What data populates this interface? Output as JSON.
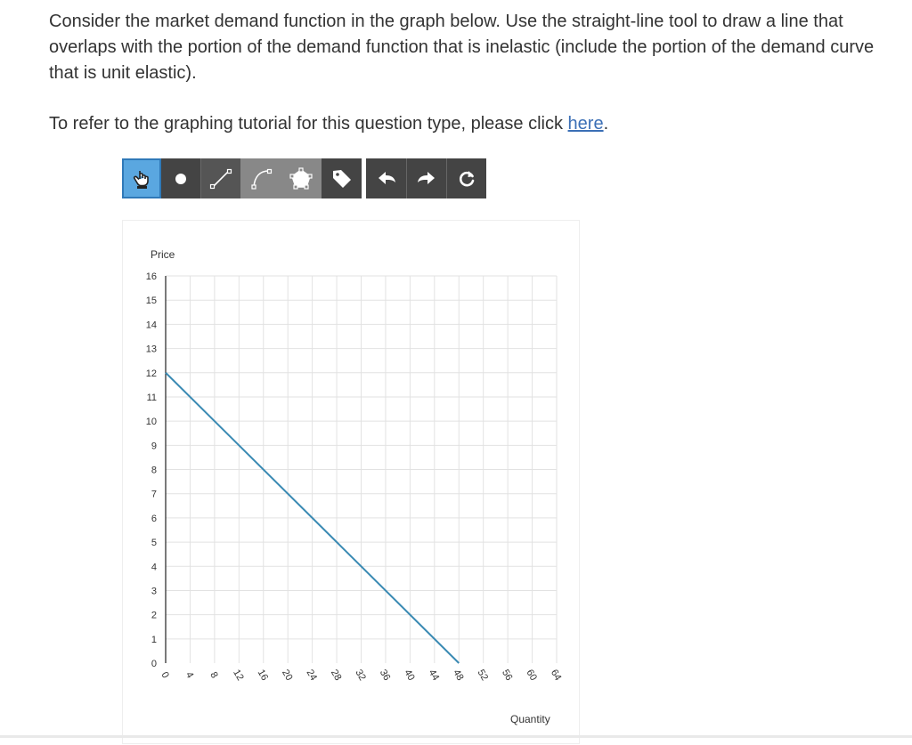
{
  "question": {
    "text": "Consider the market demand function in the graph below. Use the straight-line tool to draw a line that overlaps with the portion of the demand function that is inelastic (include the portion of the demand curve that is unit elastic).",
    "tutorial_prefix": "To refer to the graphing tutorial for this question type, please click ",
    "tutorial_link": "here",
    "tutorial_suffix": "."
  },
  "toolbar": {
    "tools": [
      {
        "name": "hand-tool",
        "icon": "pointer-hand-icon",
        "selected": true
      },
      {
        "name": "point-tool",
        "icon": "point-icon"
      },
      {
        "name": "line-tool",
        "icon": "straight-line-icon"
      },
      {
        "name": "curve-tool",
        "icon": "curve-icon"
      },
      {
        "name": "polygon-tool",
        "icon": "polygon-icon"
      },
      {
        "name": "label-tool",
        "icon": "tag-icon"
      },
      {
        "name": "undo-button",
        "icon": "undo-arrow-icon"
      },
      {
        "name": "redo-button",
        "icon": "redo-arrow-icon"
      },
      {
        "name": "reset-button",
        "icon": "reset-icon"
      }
    ],
    "colors": {
      "selected_bg": "#5aa7e0",
      "tool_bg": "#444444",
      "disabled_bg": "#888888"
    }
  },
  "chart_data": {
    "type": "line",
    "ylabel": "Price",
    "xlabel": "Quantity",
    "xlim": [
      0,
      64
    ],
    "ylim": [
      0,
      16
    ],
    "x_ticks": [
      0,
      4,
      8,
      12,
      16,
      20,
      24,
      28,
      32,
      36,
      40,
      44,
      48,
      52,
      56,
      60,
      64
    ],
    "y_ticks": [
      0,
      1,
      2,
      3,
      4,
      5,
      6,
      7,
      8,
      9,
      10,
      11,
      12,
      13,
      14,
      15,
      16
    ],
    "grid": true,
    "series": [
      {
        "color": "#3a8ab3",
        "points": [
          [
            0,
            12
          ],
          [
            48,
            0
          ]
        ]
      }
    ]
  }
}
